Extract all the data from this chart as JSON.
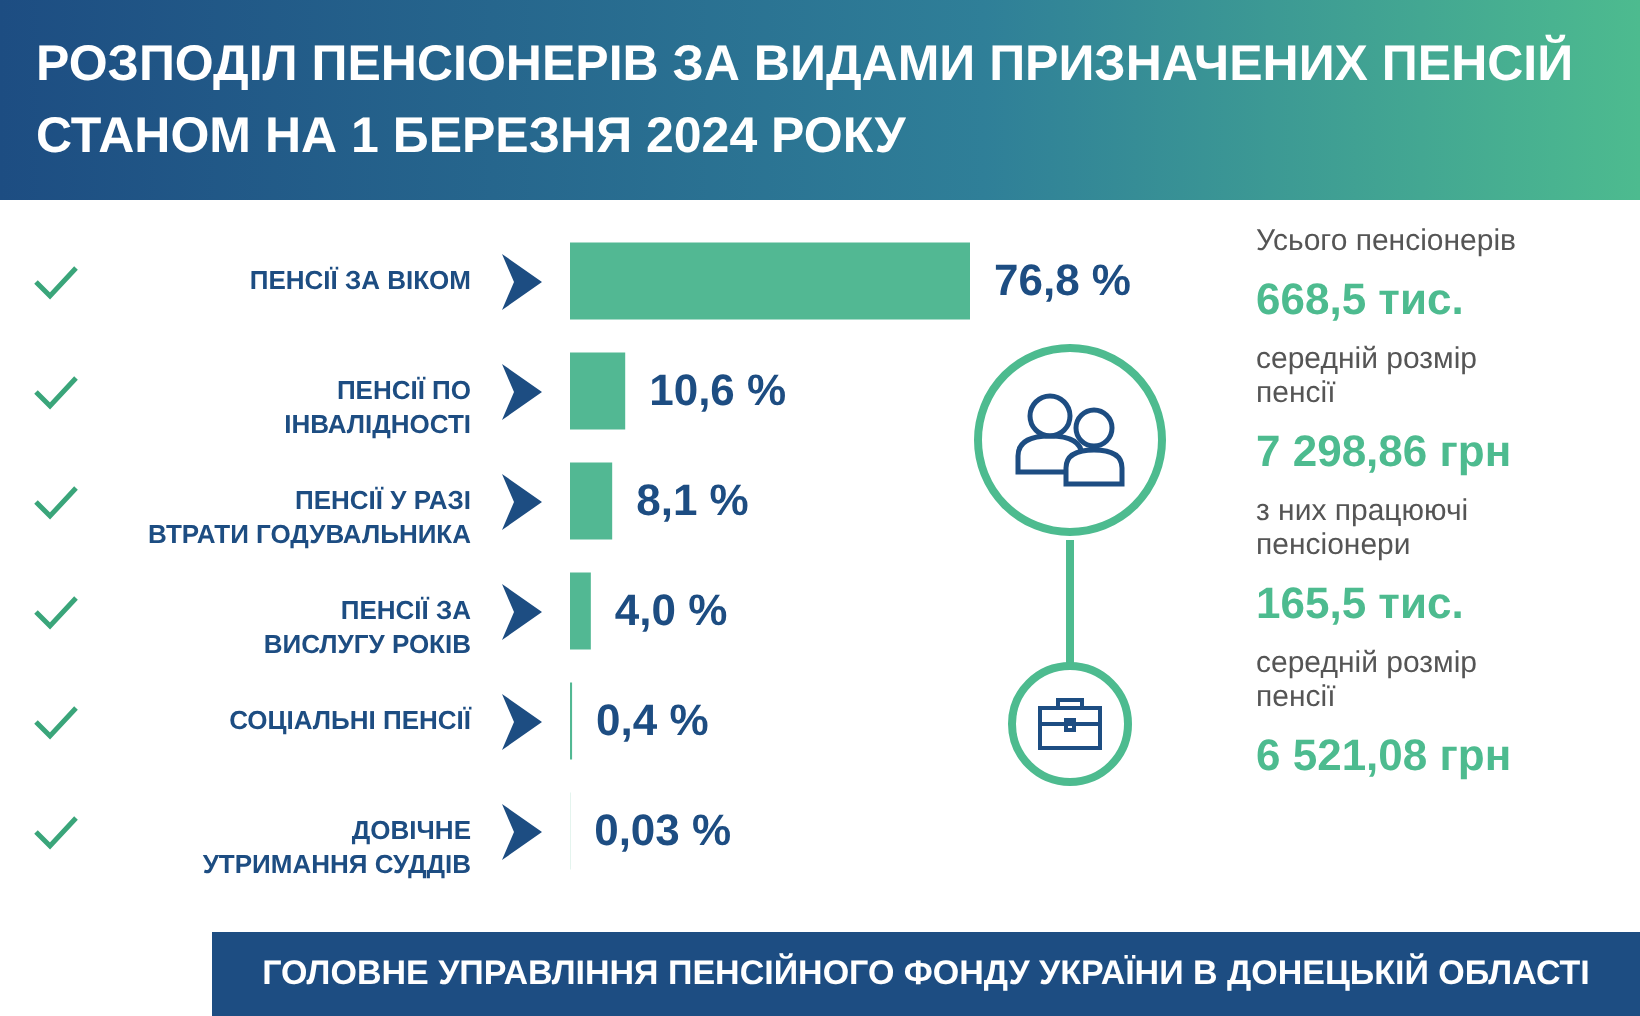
{
  "chart_data": {
    "type": "bar",
    "orientation": "horizontal",
    "title": "РОЗПОДІЛ ПЕНСІОНЕРІВ ЗА ВИДАМИ ПРИЗНАЧЕНИХ ПЕНСІЙ СТАНОМ НА 1 БЕРЕЗНЯ 2024 РОКУ",
    "categories": [
      "ПЕНСІЇ ЗА ВІКОМ",
      "ПЕНСІЇ ПО ІНВАЛІДНОСТІ",
      "ПЕНСІЇ У РАЗІ ВТРАТИ ГОДУВАЛЬНИКА",
      "ПЕНСІЇ ЗА ВИСЛУГУ РОКІВ",
      "СОЦІАЛЬНІ ПЕНСІЇ",
      "ДОВІЧНЕ УТРИМАННЯ СУДДІВ"
    ],
    "values": [
      76.8,
      10.6,
      8.1,
      4.0,
      0.4,
      0.03
    ],
    "value_labels": [
      "76,8 %",
      "10,6 %",
      "8,1 %",
      "4,0 %",
      "0,4 %",
      "0,03 %"
    ],
    "color": "#52b893",
    "annotations": [
      "Усього пенсіонерів",
      "668,5 тис.",
      "середній розмір пенсії",
      "7 298,86 грн",
      "з них працюючі пенсіонери",
      "165,5 тис.",
      "середній розмір пенсії",
      "6 521,08 грн",
      "ГОЛОВНЕ УПРАВЛІННЯ ПЕНСІЙНОГО ФОНДУ УКРАЇНИ В ДОНЕЦЬКІЙ ОБЛАСТІ"
    ]
  }
}
